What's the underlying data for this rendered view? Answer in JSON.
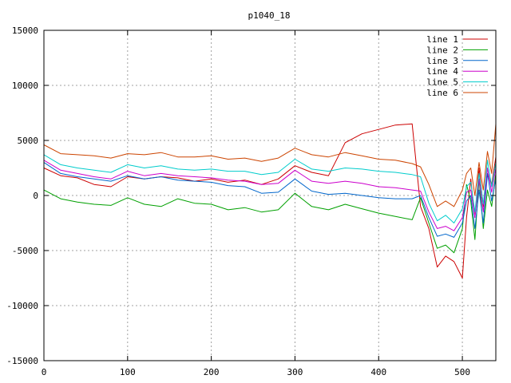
{
  "chart_data": {
    "type": "line",
    "title": "p1040_18",
    "xlabel": "",
    "ylabel": "",
    "xlim": [
      0,
      540
    ],
    "ylim": [
      -15000,
      15000
    ],
    "x_ticks": [
      0,
      100,
      200,
      300,
      400,
      500
    ],
    "y_ticks": [
      -15000,
      -10000,
      -5000,
      0,
      5000,
      10000,
      15000
    ],
    "grid": true,
    "legend_position": "top-right",
    "series": [
      {
        "name": "line 1",
        "color": "#cc0000",
        "x": [
          0,
          20,
          40,
          60,
          80,
          100,
          120,
          140,
          160,
          180,
          200,
          220,
          240,
          260,
          280,
          300,
          320,
          340,
          360,
          380,
          400,
          420,
          440,
          450,
          460,
          470,
          480,
          490,
          500,
          505,
          510,
          515,
          520,
          525,
          530,
          535,
          540
        ],
        "y": [
          2500,
          1800,
          1600,
          1000,
          800,
          1700,
          1500,
          1700,
          1600,
          1300,
          1500,
          1200,
          1400,
          1000,
          1500,
          2700,
          2100,
          1800,
          4800,
          5600,
          6000,
          6400,
          6500,
          -1000,
          -3000,
          -6500,
          -5500,
          -6000,
          -7500,
          -2000,
          1500,
          -2000,
          2500,
          -1000,
          2000,
          1000,
          3500
        ]
      },
      {
        "name": "line 2",
        "color": "#00a000",
        "x": [
          0,
          20,
          40,
          60,
          80,
          100,
          120,
          140,
          160,
          180,
          200,
          220,
          240,
          260,
          280,
          300,
          320,
          340,
          360,
          380,
          400,
          420,
          440,
          450,
          460,
          470,
          480,
          490,
          500,
          505,
          510,
          515,
          520,
          525,
          530,
          535,
          540
        ],
        "y": [
          500,
          -300,
          -600,
          -800,
          -900,
          -200,
          -800,
          -1000,
          -300,
          -700,
          -800,
          -1300,
          -1100,
          -1500,
          -1300,
          200,
          -1000,
          -1300,
          -800,
          -1200,
          -1600,
          -1900,
          -2200,
          -200,
          -2500,
          -4800,
          -4500,
          -5200,
          -3000,
          1000,
          -500,
          -4000,
          1500,
          -3000,
          500,
          -1000,
          2000
        ]
      },
      {
        "name": "line 3",
        "color": "#0066cc",
        "x": [
          0,
          20,
          40,
          60,
          80,
          100,
          120,
          140,
          160,
          180,
          200,
          220,
          240,
          260,
          280,
          300,
          320,
          340,
          360,
          380,
          400,
          420,
          440,
          450,
          460,
          470,
          480,
          490,
          500,
          505,
          510,
          515,
          520,
          525,
          530,
          535,
          540
        ],
        "y": [
          3000,
          2000,
          1700,
          1500,
          1300,
          1800,
          1500,
          1700,
          1400,
          1300,
          1200,
          900,
          800,
          200,
          300,
          1500,
          400,
          100,
          200,
          0,
          -200,
          -300,
          -300,
          0,
          -2000,
          -3700,
          -3500,
          -3800,
          -2500,
          -500,
          0,
          -3000,
          500,
          -2500,
          2000,
          -500,
          1500
        ]
      },
      {
        "name": "line 4",
        "color": "#cc00cc",
        "x": [
          0,
          20,
          40,
          60,
          80,
          100,
          120,
          140,
          160,
          180,
          200,
          220,
          240,
          260,
          280,
          300,
          320,
          340,
          360,
          380,
          400,
          420,
          440,
          450,
          460,
          470,
          480,
          490,
          500,
          505,
          510,
          515,
          520,
          525,
          530,
          535,
          540
        ],
        "y": [
          3200,
          2300,
          2000,
          1700,
          1500,
          2200,
          1800,
          2000,
          1800,
          1700,
          1600,
          1400,
          1300,
          1000,
          1100,
          2300,
          1300,
          1100,
          1300,
          1100,
          800,
          700,
          500,
          400,
          -1500,
          -3000,
          -2800,
          -3200,
          -2000,
          300,
          500,
          -2000,
          1500,
          -1500,
          2500,
          300,
          2500
        ]
      },
      {
        "name": "line 5",
        "color": "#00cccc",
        "x": [
          0,
          20,
          40,
          60,
          80,
          100,
          120,
          140,
          160,
          180,
          200,
          220,
          240,
          260,
          280,
          300,
          320,
          340,
          360,
          380,
          400,
          420,
          440,
          450,
          460,
          470,
          480,
          490,
          500,
          505,
          510,
          515,
          520,
          525,
          530,
          535,
          540
        ],
        "y": [
          3700,
          2800,
          2500,
          2300,
          2100,
          2800,
          2500,
          2700,
          2400,
          2300,
          2400,
          2200,
          2200,
          1900,
          2100,
          3300,
          2400,
          2200,
          2500,
          2400,
          2200,
          2100,
          1900,
          1700,
          -700,
          -2300,
          -1800,
          -2500,
          -1200,
          800,
          1200,
          -1500,
          2000,
          -800,
          3200,
          800,
          3000
        ]
      },
      {
        "name": "line 6",
        "color": "#cc4400",
        "x": [
          0,
          20,
          40,
          60,
          80,
          100,
          120,
          140,
          160,
          180,
          200,
          220,
          240,
          260,
          280,
          300,
          320,
          340,
          360,
          380,
          400,
          420,
          440,
          450,
          460,
          470,
          480,
          490,
          500,
          505,
          510,
          515,
          520,
          525,
          530,
          535,
          540
        ],
        "y": [
          4600,
          3800,
          3700,
          3600,
          3400,
          3800,
          3700,
          3900,
          3500,
          3500,
          3600,
          3300,
          3400,
          3100,
          3400,
          4300,
          3700,
          3500,
          3900,
          3600,
          3300,
          3200,
          2900,
          2600,
          1000,
          -1000,
          -500,
          -1000,
          500,
          2000,
          2500,
          0,
          3000,
          500,
          4000,
          2000,
          6500
        ]
      }
    ]
  }
}
